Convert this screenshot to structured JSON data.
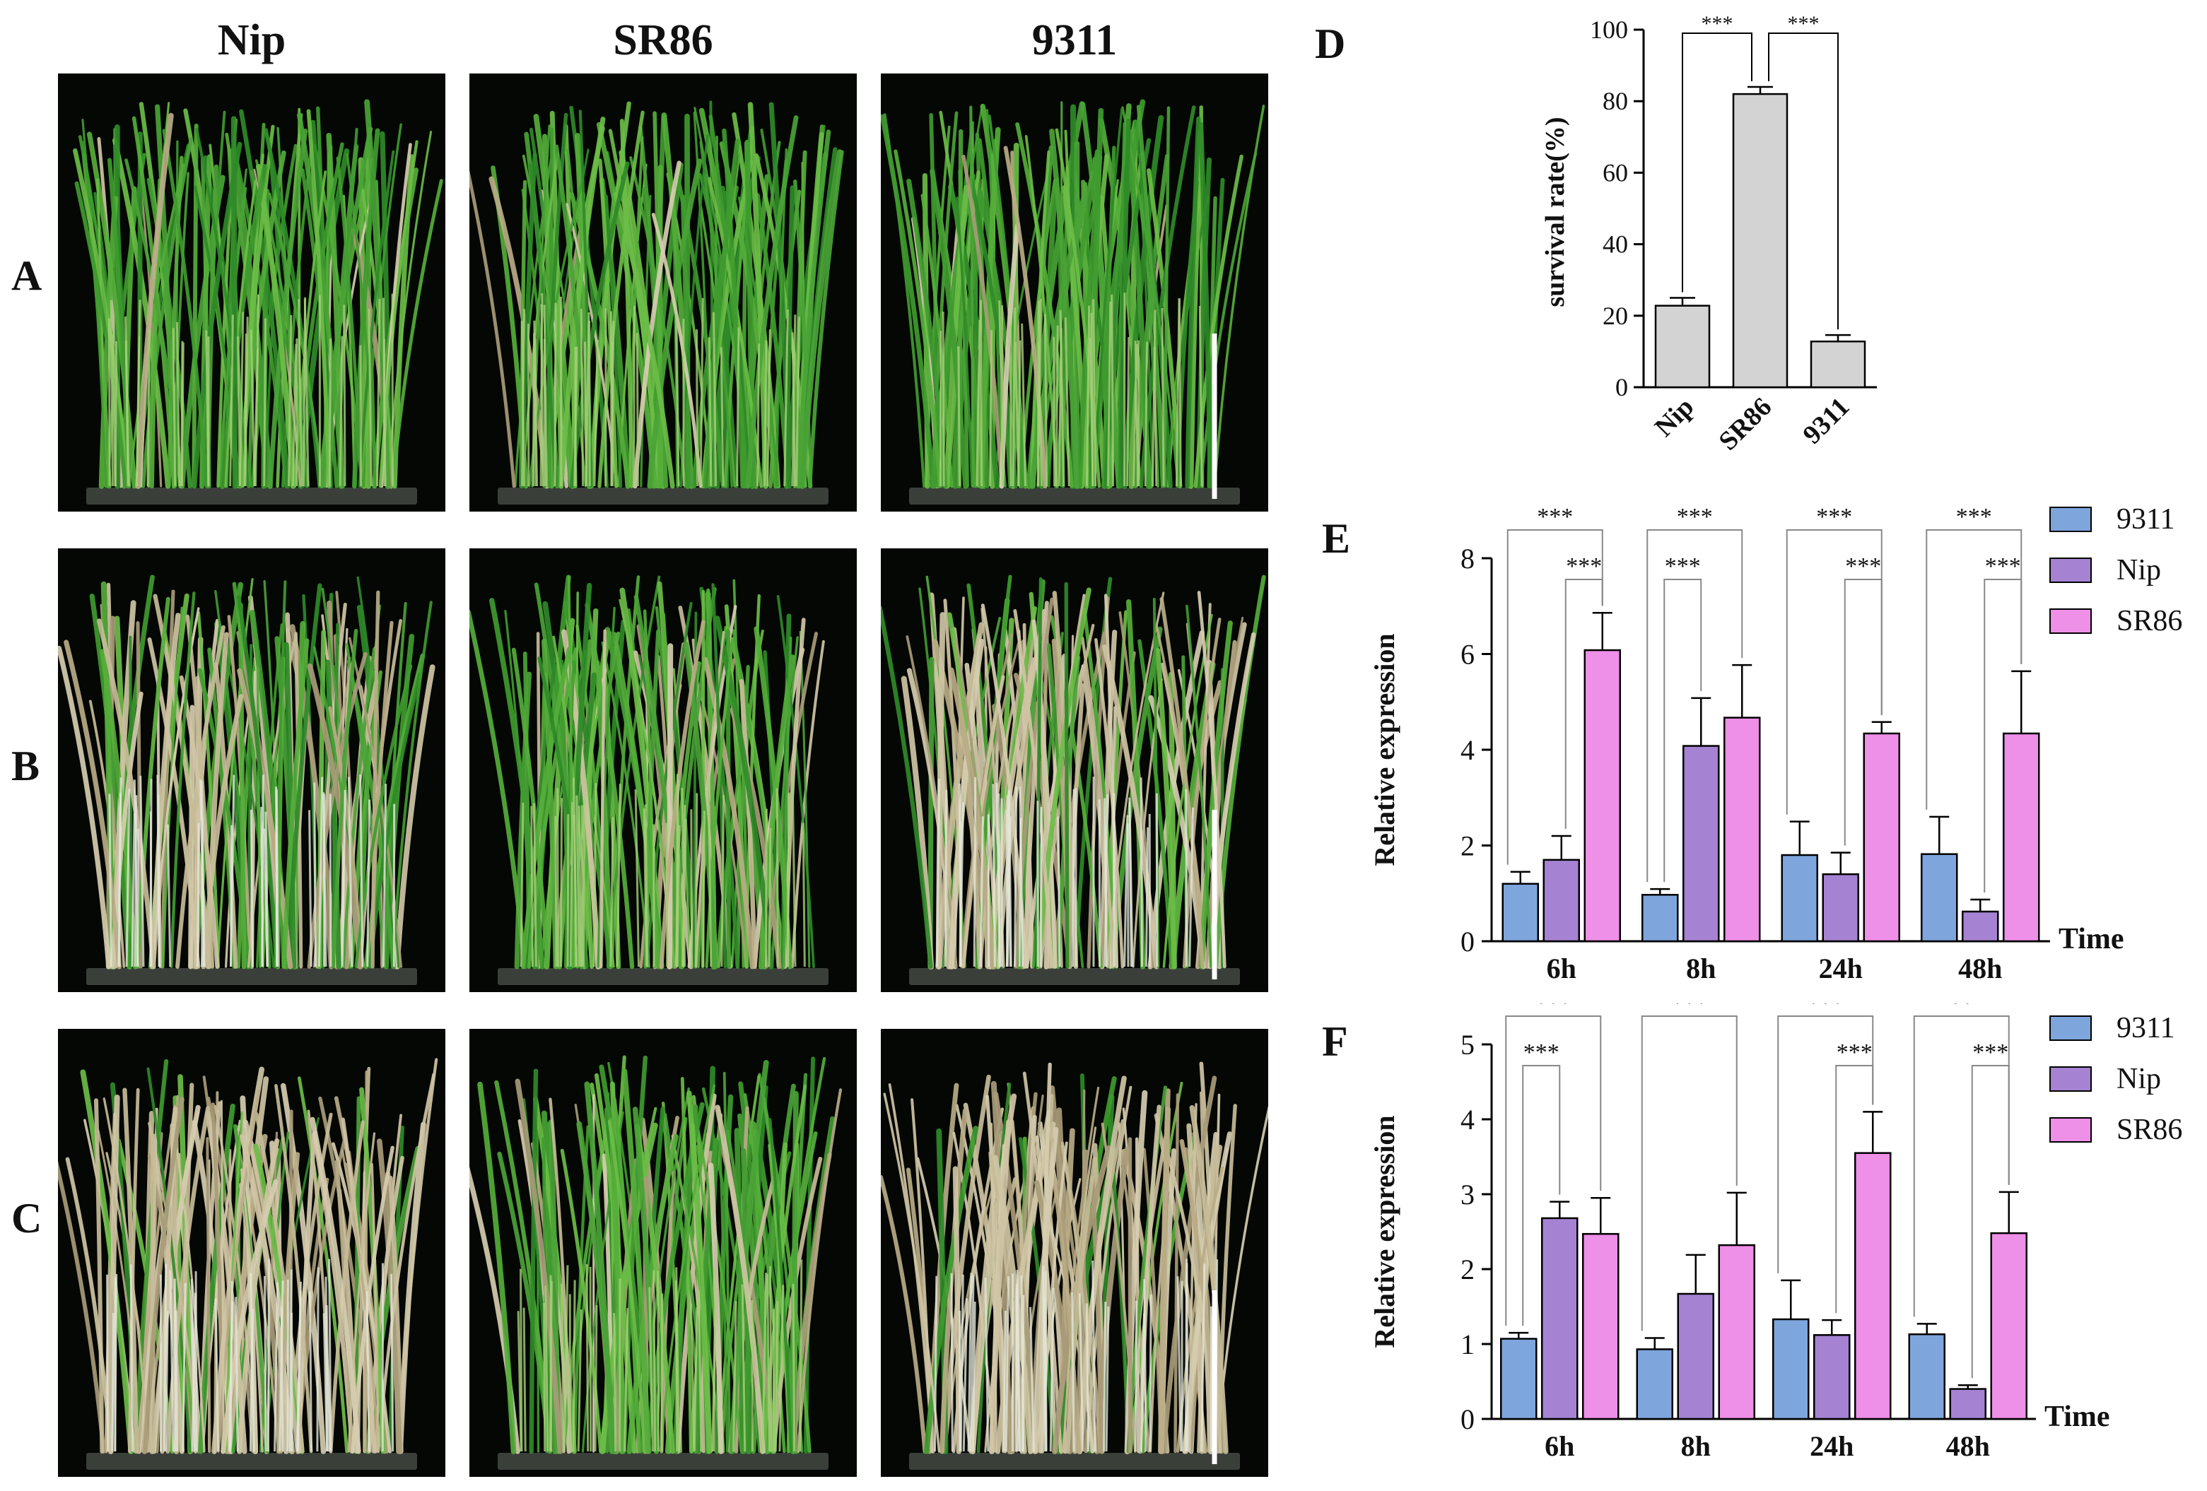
{
  "columns": [
    "Nip",
    "SR86",
    "9311"
  ],
  "rows": [
    "A",
    "B",
    "C"
  ],
  "photo_panels": [
    {
      "row": "A",
      "variety": "Nip",
      "depicts": "rice-seedlings-healthy-green"
    },
    {
      "row": "A",
      "variety": "SR86",
      "depicts": "rice-seedlings-healthy-green"
    },
    {
      "row": "A",
      "variety": "9311",
      "depicts": "rice-seedlings-healthy-green"
    },
    {
      "row": "B",
      "variety": "Nip",
      "depicts": "rice-seedlings-partly-wilted"
    },
    {
      "row": "B",
      "variety": "SR86",
      "depicts": "rice-seedlings-mostly-green"
    },
    {
      "row": "B",
      "variety": "9311",
      "depicts": "rice-seedlings-wilted"
    },
    {
      "row": "C",
      "variety": "Nip",
      "depicts": "rice-seedlings-dried"
    },
    {
      "row": "C",
      "variety": "SR86",
      "depicts": "rice-seedlings-mostly-green"
    },
    {
      "row": "C",
      "variety": "9311",
      "depicts": "rice-seedlings-dried"
    }
  ],
  "colors": {
    "bar_gray": "#d3d3d3",
    "s9311": "#7ea6dd",
    "nip": "#a583d2",
    "sr86": "#ee8fe8",
    "photo_bg": "#050705",
    "leaf_green": "#3f9b2f",
    "leaf_dry": "#c7bc98"
  },
  "chart_data": [
    {
      "panel": "D",
      "type": "bar",
      "categories": [
        "Nip",
        "SR86",
        "9311"
      ],
      "values": [
        22.8,
        82.0,
        12.8
      ],
      "errors": [
        2.2,
        2.0,
        1.8
      ],
      "ylabel": "survival rate(%)",
      "ylim": [
        0,
        100
      ],
      "yticks": [
        0,
        20,
        40,
        60,
        80,
        100
      ],
      "significance": [
        {
          "from": "Nip",
          "to": "SR86",
          "label": "***"
        },
        {
          "from": "SR86",
          "to": "9311",
          "label": "***"
        }
      ]
    },
    {
      "panel": "E",
      "type": "bar",
      "categories": [
        "6h",
        "8h",
        "24h",
        "48h"
      ],
      "xlabel": "Time",
      "ylabel": "Relative expression",
      "ylim": [
        0,
        8
      ],
      "yticks": [
        0,
        2,
        4,
        6,
        8
      ],
      "series": [
        {
          "name": "9311",
          "values": [
            1.2,
            0.97,
            1.8,
            1.82
          ],
          "errors": [
            0.25,
            0.12,
            0.7,
            0.78
          ]
        },
        {
          "name": "Nip",
          "values": [
            1.7,
            4.08,
            1.4,
            0.62
          ],
          "errors": [
            0.5,
            1.0,
            0.45,
            0.25
          ]
        },
        {
          "name": "SR86",
          "values": [
            6.08,
            4.67,
            4.34,
            4.34
          ],
          "errors": [
            0.78,
            1.1,
            0.24,
            1.3
          ]
        }
      ],
      "significance": [
        {
          "group": "6h",
          "from": "9311",
          "to": "SR86",
          "label": "***"
        },
        {
          "group": "6h",
          "from": "Nip",
          "to": "SR86",
          "label": "***"
        },
        {
          "group": "8h",
          "from": "9311",
          "to": "SR86",
          "label": "***"
        },
        {
          "group": "8h",
          "from": "9311",
          "to": "Nip",
          "label": "***"
        },
        {
          "group": "24h",
          "from": "9311",
          "to": "SR86",
          "label": "***"
        },
        {
          "group": "24h",
          "from": "Nip",
          "to": "SR86",
          "label": "***"
        },
        {
          "group": "48h",
          "from": "9311",
          "to": "SR86",
          "label": "***"
        },
        {
          "group": "48h",
          "from": "Nip",
          "to": "SR86",
          "label": "***"
        }
      ]
    },
    {
      "panel": "F",
      "type": "bar",
      "categories": [
        "6h",
        "8h",
        "24h",
        "48h"
      ],
      "xlabel": "Time",
      "ylabel": "Relative expression",
      "ylim": [
        0,
        5
      ],
      "yticks": [
        0,
        1,
        2,
        3,
        4,
        5
      ],
      "series": [
        {
          "name": "9311",
          "values": [
            1.07,
            0.93,
            1.33,
            1.13
          ],
          "errors": [
            0.08,
            0.15,
            0.52,
            0.14
          ]
        },
        {
          "name": "Nip",
          "values": [
            2.68,
            1.67,
            1.12,
            0.4
          ],
          "errors": [
            0.22,
            0.52,
            0.2,
            0.05
          ]
        },
        {
          "name": "SR86",
          "values": [
            2.47,
            2.32,
            3.55,
            2.48
          ],
          "errors": [
            0.48,
            0.7,
            0.55,
            0.55
          ]
        }
      ],
      "significance": [
        {
          "group": "6h",
          "from": "9311",
          "to": "SR86",
          "label": "***"
        },
        {
          "group": "6h",
          "from": "9311",
          "to": "Nip",
          "label": "***"
        },
        {
          "group": "8h",
          "from": "9311",
          "to": "SR86",
          "label": "***"
        },
        {
          "group": "24h",
          "from": "9311",
          "to": "SR86",
          "label": "***"
        },
        {
          "group": "24h",
          "from": "Nip",
          "to": "SR86",
          "label": "***"
        },
        {
          "group": "48h",
          "from": "9311",
          "to": "SR86",
          "label": "**"
        },
        {
          "group": "48h",
          "from": "Nip",
          "to": "SR86",
          "label": "***"
        }
      ]
    }
  ]
}
